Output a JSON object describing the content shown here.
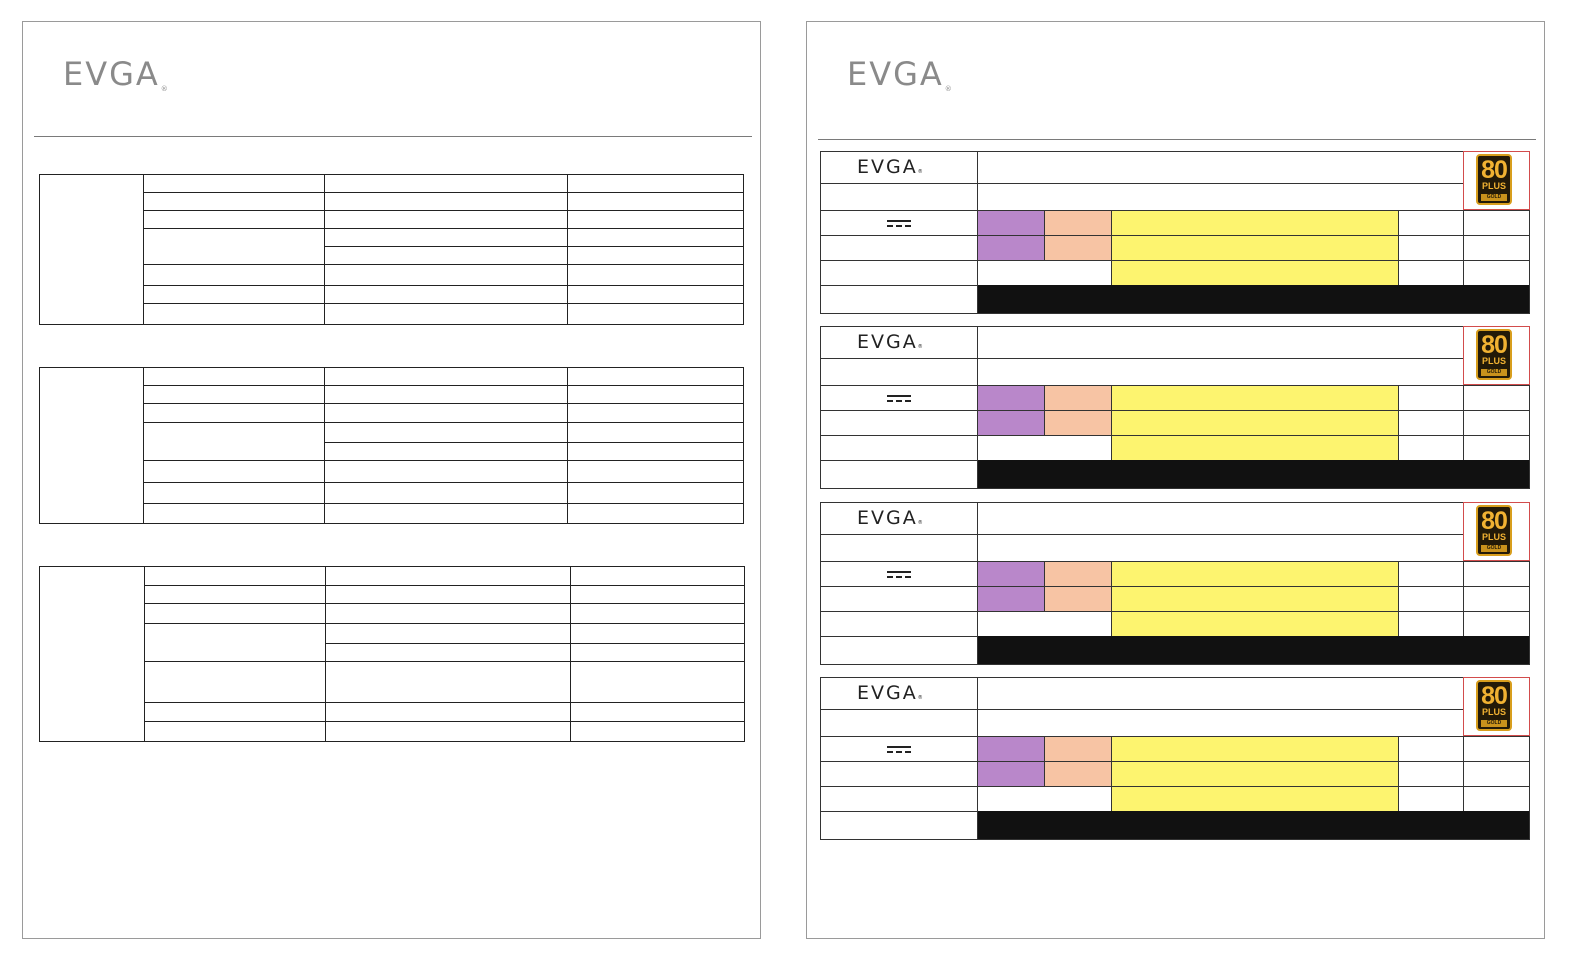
{
  "document": {
    "brand": "EVGA",
    "registered_mark": "®",
    "colors": {
      "purple": "#b987ca",
      "peach": "#f7c4a4",
      "yellow": "#fdf46f",
      "black": "#111111",
      "badge_border": "#d24c4c",
      "border": "#222222"
    }
  },
  "left_page": {
    "spec_tables": [
      {
        "groups": 1,
        "row_count": 8
      },
      {
        "groups": 1,
        "row_count": 8
      },
      {
        "groups": 1,
        "row_count": 8
      }
    ]
  },
  "right_page": {
    "labels": [
      {
        "badge": {
          "number": "80",
          "plus": "PLUS",
          "grade": "GOLD"
        },
        "icon": "dc-symbol-icon"
      },
      {
        "badge": {
          "number": "80",
          "plus": "PLUS",
          "grade": "GOLD"
        },
        "icon": "dc-symbol-icon"
      },
      {
        "badge": {
          "number": "80",
          "plus": "PLUS",
          "grade": "GOLD"
        },
        "icon": "dc-symbol-icon"
      },
      {
        "badge": {
          "number": "80",
          "plus": "PLUS",
          "grade": "GOLD"
        },
        "icon": "dc-symbol-icon"
      }
    ]
  }
}
